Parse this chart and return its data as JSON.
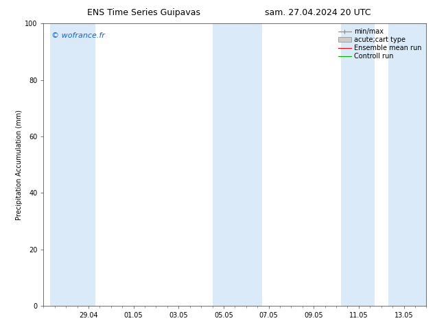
{
  "title_left": "ENS Time Series Guipavas",
  "title_right": "sam. 27.04.2024 20 UTC",
  "ylabel": "Precipitation Accumulation (mm)",
  "watermark": "© wofrance.fr",
  "watermark_color": "#1166cc",
  "ylim": [
    0,
    100
  ],
  "yticks": [
    0,
    20,
    40,
    60,
    80,
    100
  ],
  "background_color": "#ffffff",
  "plot_bg_color": "#ffffff",
  "shaded_bands_color": "#daeaf8",
  "xtick_labels": [
    "29.04",
    "01.05",
    "03.05",
    "05.05",
    "07.05",
    "09.05",
    "11.05",
    "13.05"
  ],
  "tick_positions": [
    2,
    4,
    6,
    8,
    10,
    12,
    14,
    16
  ],
  "xlim": [
    0,
    17
  ],
  "shaded_bands": [
    [
      0.3,
      2.3
    ],
    [
      7.5,
      9.7
    ],
    [
      13.2,
      14.7
    ],
    [
      15.3,
      17.0
    ]
  ],
  "title_fontsize": 9,
  "tick_fontsize": 7,
  "ylabel_fontsize": 7,
  "legend_fontsize": 7,
  "watermark_fontsize": 8
}
